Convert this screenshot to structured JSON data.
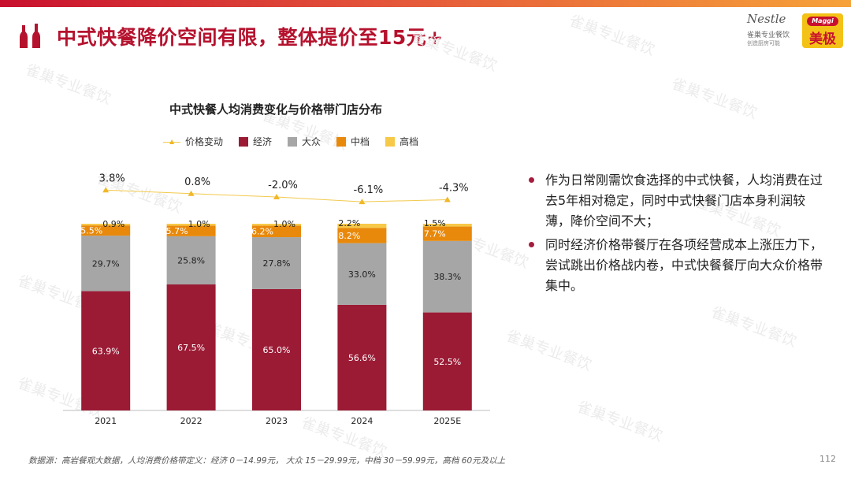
{
  "header": {
    "title": "中式快餐降价空间有限，整体提价至15元+"
  },
  "logo": {
    "brand1": "Nestle",
    "brand1_sub": "雀巢专业餐饮",
    "brand1_sub2": "创造厨房可能",
    "brand2": "美极",
    "brand2_en": "Maggi"
  },
  "colors": {
    "economy": "#9b1b35",
    "mass": "#a6a6a6",
    "mid": "#e8890c",
    "high": "#f7c948",
    "price_change": "#f2c94c",
    "accent": "#b5122e"
  },
  "legend": {
    "price_change": "价格变动",
    "economy": "经济",
    "mass": "大众",
    "mid": "中档",
    "high": "高档"
  },
  "chart_data": {
    "type": "bar",
    "stacked": true,
    "title": "中式快餐人均消费变化与价格带门店分布",
    "categories": [
      "2021",
      "2022",
      "2023",
      "2024",
      "2025E"
    ],
    "series": [
      {
        "name": "经济",
        "values": [
          63.9,
          67.5,
          65.0,
          56.6,
          52.5
        ],
        "labels": [
          "63.9%",
          "67.5%",
          "65.0%",
          "56.6%",
          "52.5%"
        ]
      },
      {
        "name": "大众",
        "values": [
          29.7,
          25.8,
          27.8,
          33.0,
          38.3
        ],
        "labels": [
          "29.7%",
          "25.8%",
          "27.8%",
          "33.0%",
          "38.3%"
        ]
      },
      {
        "name": "中档",
        "values": [
          5.5,
          5.7,
          6.2,
          8.2,
          7.7
        ],
        "labels": [
          "5.5%",
          "5.7%",
          "6.2%",
          "8.2%",
          "7.7%"
        ]
      },
      {
        "name": "高档",
        "values": [
          0.9,
          1.0,
          1.0,
          2.2,
          1.5
        ],
        "labels": [
          "0.9%",
          "1.0%",
          "1.0%",
          "2.2%",
          "1.5%"
        ]
      }
    ],
    "price_change": {
      "name": "价格变动",
      "values": [
        3.8,
        0.8,
        -2.0,
        -6.1,
        -4.3
      ],
      "labels": [
        "3.8%",
        "0.8%",
        "-2.0%",
        "-6.1%",
        "-4.3%"
      ]
    },
    "ylim": [
      0,
      100
    ]
  },
  "bullets": [
    "作为日常刚需饮食选择的中式快餐，人均消费在过去5年相对稳定，同时中式快餐门店本身利润较薄，降价空间不大；",
    "同时经济价格带餐厅在各项经营成本上涨压力下，尝试跳出价格战内卷，中式快餐餐厅向大众价格带集中。"
  ],
  "footnote": "数据源：高岩餐观大数据，人均消费价格带定义：经济 0－14.99元，  大众 15－29.99元，中档 30－59.99元，高档 60元及以上",
  "page_number": "112",
  "watermark": "雀巢专业餐饮"
}
